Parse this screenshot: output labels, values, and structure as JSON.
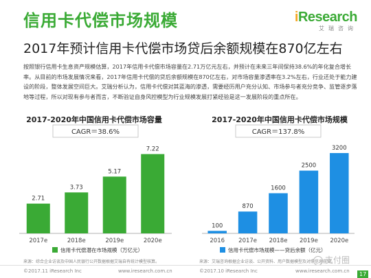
{
  "header": {
    "title": "信用卡代偿市场规模",
    "logo_prefix": "i",
    "logo_rest": "Research",
    "logo_sub": "艾瑞咨询"
  },
  "subtitle": "2017年预计信用卡代偿市场贷后余额规模在870亿左右",
  "paragraph": "按照银行信用卡生息资产规模估算，2017年信用卡代偿市场容量在2.71万亿元左右，并预计在未来三年间保持38.6%的年化复合增长率。从目前的市场发展情况来看，2017年信用卡代偿的贷后余额规模在870亿左右，对市场容量渗透率在3.2%左右，行业还处于能力建设的阶段，整体发展空间巨大。艾瑞分析认为，信用卡代偿对其蓝海的渗透，需要经历用户充分认知、市场参与者充分竞争、监管逐步落地等过程，所以对现有参与者而言，不断验证自身风控模型为行业规模发展打紧经验是这一发展阶段的重点所在。",
  "chart_data": [
    {
      "type": "bar",
      "title": "2017-2020年中国信用卡代偿市场容量",
      "categories": [
        "2017e",
        "2018e",
        "2019e",
        "2020e"
      ],
      "values": [
        2.71,
        3.73,
        5.17,
        7.22
      ],
      "value_labels": [
        "2.71",
        "3.73",
        "5.17",
        "7.22"
      ],
      "cagr": "CAGR＝38.6%",
      "series": [
        {
          "name": "信用卡代偿潜在市场规模（万亿元）",
          "values": [
            2.71,
            3.73,
            5.17,
            7.22
          ]
        }
      ],
      "ylim": [
        0,
        8
      ],
      "color": "#3aaa35",
      "legend": "bottom",
      "source": "来源：综合企业访谈及中国人民银行公开数据根据艾瑞自有统计模型核算。"
    },
    {
      "type": "bar",
      "title": "2017-2020年中国信用卡代偿市场规模",
      "categories": [
        "2016",
        "2017e",
        "2018e",
        "2019e",
        "2020e"
      ],
      "values": [
        100,
        870,
        1600,
        2500,
        3200
      ],
      "value_labels": [
        "100",
        "870",
        "1600",
        "2500",
        "3200"
      ],
      "cagr": "CAGR＝137.8%",
      "series": [
        {
          "name": "信用卡代偿市场规模——贷后余额（亿元）",
          "values": [
            100,
            870,
            1600,
            2500,
            3200
          ]
        }
      ],
      "ylim": [
        0,
        3500
      ],
      "color": "#1e8fe3",
      "legend": "bottom",
      "source": "来源：艾瑞咨询根据企业访谈、公开资料、用户数据模型及对照信息获得。"
    }
  ],
  "footer": {
    "left": "©2017.11 iResearch Inc",
    "left_url": "www.iresearch.com.cn",
    "right": "©2017.10 iResearch Inc",
    "right_url": "www.iresearch.com.cn",
    "page": "17",
    "watermark": "支付圈"
  }
}
